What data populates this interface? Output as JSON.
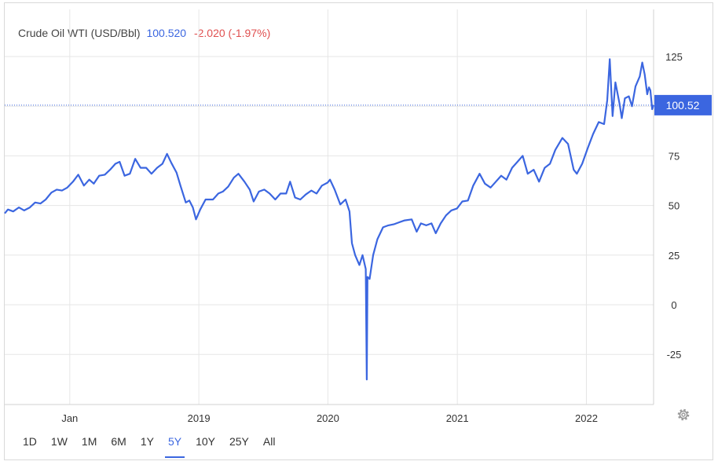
{
  "header": {
    "title": "Crude Oil WTI (USD/Bbl)",
    "last": "100.520",
    "change": "-2.020 (-1.97%)"
  },
  "ranges": [
    "1D",
    "1W",
    "1M",
    "6M",
    "1Y",
    "5Y",
    "10Y",
    "25Y",
    "All"
  ],
  "active_range": "5Y",
  "colors": {
    "line": "#3b66e0",
    "negative": "#e05050",
    "grid": "#e6e6e6",
    "badge": "#3b66e0"
  },
  "icons": {
    "settings": "gear-icon"
  },
  "chart_data": {
    "type": "line",
    "title": "Crude Oil WTI (USD/Bbl)",
    "xlabel": "",
    "ylabel": "",
    "ylim": [
      -50,
      150
    ],
    "yticks": [
      125,
      75,
      50,
      25,
      0,
      -25
    ],
    "xticks": [
      {
        "label": "Jan",
        "x": "2018-01-01"
      },
      {
        "label": "2019",
        "x": "2019-01-01"
      },
      {
        "label": "2020",
        "x": "2020-01-01"
      },
      {
        "label": "2021",
        "x": "2021-01-01"
      },
      {
        "label": "2022",
        "x": "2022-01-01"
      }
    ],
    "xlim": [
      "2017-07-01",
      "2022-07-10"
    ],
    "grid": true,
    "last_value_label": "100.52",
    "last_value": 100.52,
    "series": [
      {
        "name": "",
        "points": [
          [
            "2017-07-01",
            46
          ],
          [
            "2017-07-10",
            48
          ],
          [
            "2017-07-25",
            47
          ],
          [
            "2017-08-10",
            49
          ],
          [
            "2017-08-25",
            47.5
          ],
          [
            "2017-09-10",
            49
          ],
          [
            "2017-09-25",
            51.5
          ],
          [
            "2017-10-10",
            51
          ],
          [
            "2017-10-25",
            53
          ],
          [
            "2017-11-10",
            56.5
          ],
          [
            "2017-11-25",
            58
          ],
          [
            "2017-12-10",
            57.5
          ],
          [
            "2017-12-25",
            59
          ],
          [
            "2018-01-10",
            62
          ],
          [
            "2018-01-25",
            65.5
          ],
          [
            "2018-02-10",
            60
          ],
          [
            "2018-02-25",
            63
          ],
          [
            "2018-03-10",
            61
          ],
          [
            "2018-03-25",
            65
          ],
          [
            "2018-04-10",
            65.5
          ],
          [
            "2018-04-25",
            68
          ],
          [
            "2018-05-10",
            71
          ],
          [
            "2018-05-22",
            72
          ],
          [
            "2018-06-05",
            65
          ],
          [
            "2018-06-20",
            66
          ],
          [
            "2018-07-05",
            73.5
          ],
          [
            "2018-07-20",
            69
          ],
          [
            "2018-08-05",
            69
          ],
          [
            "2018-08-20",
            66
          ],
          [
            "2018-09-05",
            69
          ],
          [
            "2018-09-20",
            71
          ],
          [
            "2018-10-03",
            76
          ],
          [
            "2018-10-15",
            71.5
          ],
          [
            "2018-10-30",
            66.5
          ],
          [
            "2018-11-10",
            60
          ],
          [
            "2018-11-25",
            51.5
          ],
          [
            "2018-12-05",
            52.5
          ],
          [
            "2018-12-15",
            49
          ],
          [
            "2018-12-24",
            43
          ],
          [
            "2019-01-05",
            48
          ],
          [
            "2019-01-20",
            53
          ],
          [
            "2019-02-10",
            53
          ],
          [
            "2019-02-25",
            56
          ],
          [
            "2019-03-10",
            57
          ],
          [
            "2019-03-25",
            59.5
          ],
          [
            "2019-04-10",
            64
          ],
          [
            "2019-04-23",
            66
          ],
          [
            "2019-05-10",
            62
          ],
          [
            "2019-05-25",
            58
          ],
          [
            "2019-06-05",
            52
          ],
          [
            "2019-06-20",
            57
          ],
          [
            "2019-07-05",
            58
          ],
          [
            "2019-07-20",
            56
          ],
          [
            "2019-08-05",
            53
          ],
          [
            "2019-08-20",
            56
          ],
          [
            "2019-09-05",
            56
          ],
          [
            "2019-09-16",
            62
          ],
          [
            "2019-09-30",
            54
          ],
          [
            "2019-10-15",
            53
          ],
          [
            "2019-10-30",
            55.5
          ],
          [
            "2019-11-15",
            57.5
          ],
          [
            "2019-11-30",
            56
          ],
          [
            "2019-12-15",
            60
          ],
          [
            "2019-12-31",
            61.5
          ],
          [
            "2020-01-07",
            63
          ],
          [
            "2020-01-20",
            58
          ],
          [
            "2020-02-05",
            50.5
          ],
          [
            "2020-02-20",
            53
          ],
          [
            "2020-03-02",
            47
          ],
          [
            "2020-03-09",
            31
          ],
          [
            "2020-03-18",
            25
          ],
          [
            "2020-03-30",
            20
          ],
          [
            "2020-04-08",
            25
          ],
          [
            "2020-04-17",
            18
          ],
          [
            "2020-04-20",
            -37.6
          ],
          [
            "2020-04-22",
            14
          ],
          [
            "2020-04-28",
            13
          ],
          [
            "2020-05-08",
            25
          ],
          [
            "2020-05-20",
            33
          ],
          [
            "2020-06-05",
            39
          ],
          [
            "2020-06-20",
            40
          ],
          [
            "2020-07-05",
            40.5
          ],
          [
            "2020-07-20",
            41.5
          ],
          [
            "2020-08-05",
            42.5
          ],
          [
            "2020-08-25",
            43
          ],
          [
            "2020-09-08",
            36.8
          ],
          [
            "2020-09-20",
            41
          ],
          [
            "2020-10-05",
            40
          ],
          [
            "2020-10-20",
            41
          ],
          [
            "2020-11-01",
            36
          ],
          [
            "2020-11-15",
            41
          ],
          [
            "2020-11-30",
            45
          ],
          [
            "2020-12-15",
            47.5
          ],
          [
            "2020-12-31",
            48.5
          ],
          [
            "2021-01-15",
            52
          ],
          [
            "2021-01-31",
            52.5
          ],
          [
            "2021-02-15",
            60
          ],
          [
            "2021-03-05",
            66
          ],
          [
            "2021-03-20",
            61
          ],
          [
            "2021-04-05",
            59
          ],
          [
            "2021-04-20",
            62
          ],
          [
            "2021-05-05",
            65
          ],
          [
            "2021-05-20",
            63
          ],
          [
            "2021-06-05",
            69
          ],
          [
            "2021-06-20",
            72
          ],
          [
            "2021-07-05",
            75
          ],
          [
            "2021-07-19",
            66
          ],
          [
            "2021-08-05",
            68
          ],
          [
            "2021-08-20",
            62
          ],
          [
            "2021-09-05",
            69
          ],
          [
            "2021-09-20",
            71
          ],
          [
            "2021-10-05",
            78
          ],
          [
            "2021-10-25",
            84
          ],
          [
            "2021-11-10",
            81
          ],
          [
            "2021-11-26",
            68
          ],
          [
            "2021-12-05",
            66
          ],
          [
            "2021-12-20",
            71
          ],
          [
            "2022-01-05",
            79
          ],
          [
            "2022-01-20",
            86
          ],
          [
            "2022-02-05",
            92
          ],
          [
            "2022-02-20",
            91
          ],
          [
            "2022-03-01",
            103
          ],
          [
            "2022-03-08",
            123.7
          ],
          [
            "2022-03-16",
            95
          ],
          [
            "2022-03-24",
            112
          ],
          [
            "2022-04-05",
            101
          ],
          [
            "2022-04-11",
            94
          ],
          [
            "2022-04-20",
            104
          ],
          [
            "2022-05-01",
            105
          ],
          [
            "2022-05-10",
            100
          ],
          [
            "2022-05-20",
            110
          ],
          [
            "2022-06-01",
            115
          ],
          [
            "2022-06-08",
            122
          ],
          [
            "2022-06-15",
            116
          ],
          [
            "2022-06-22",
            106
          ],
          [
            "2022-06-27",
            109.5
          ],
          [
            "2022-07-01",
            108
          ],
          [
            "2022-07-06",
            98.5
          ],
          [
            "2022-07-10",
            100.52
          ]
        ]
      }
    ]
  }
}
